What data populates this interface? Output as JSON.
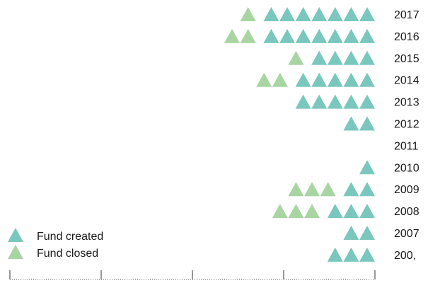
{
  "chart_data": {
    "type": "pictogram",
    "title": "",
    "legend": [
      {
        "name": "Fund created",
        "color": "#7ac7bd"
      },
      {
        "name": "Fund closed",
        "color": "#a8d5a2"
      }
    ],
    "legend_position": "bottom-left",
    "rows": [
      {
        "label": "2017",
        "created": 7,
        "closed": 1
      },
      {
        "label": "2016",
        "created": 7,
        "closed": 2
      },
      {
        "label": "2015",
        "created": 4,
        "closed": 1
      },
      {
        "label": "2014",
        "created": 5,
        "closed": 2
      },
      {
        "label": "2013",
        "created": 5,
        "closed": 0
      },
      {
        "label": "2012",
        "created": 2,
        "closed": 0
      },
      {
        "label": "2011",
        "created": 0,
        "closed": 0
      },
      {
        "label": "2010",
        "created": 1,
        "closed": 0
      },
      {
        "label": "2009",
        "created": 2,
        "closed": 3
      },
      {
        "label": "2008",
        "created": 3,
        "closed": 3
      },
      {
        "label": "2007",
        "created": 2,
        "closed": 0
      },
      {
        "label": "200,",
        "created": 3,
        "closed": 0
      }
    ],
    "grid": false,
    "axis": "bottom"
  }
}
